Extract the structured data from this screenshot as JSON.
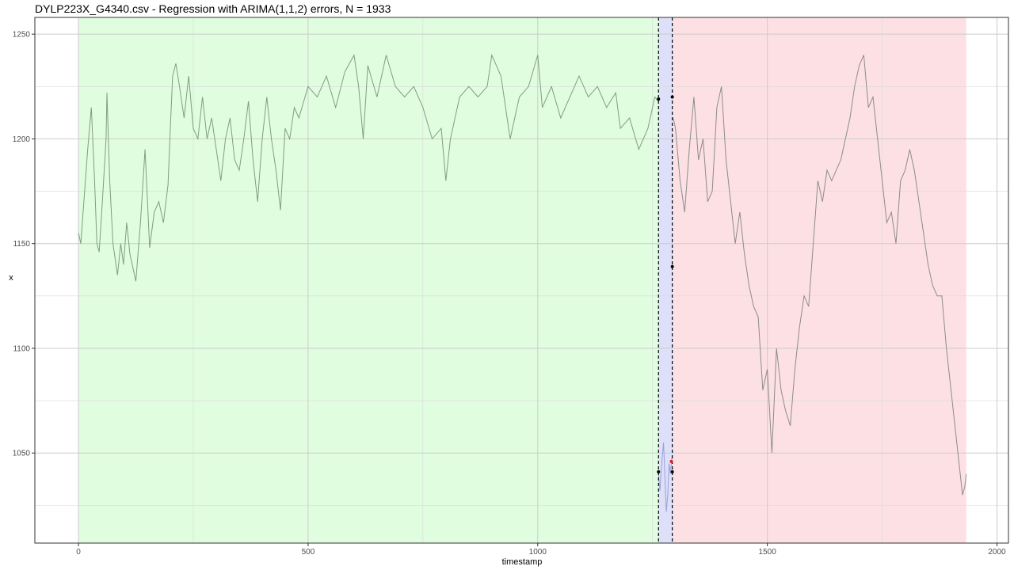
{
  "chart_data": {
    "type": "line",
    "title": "DYLP223X_G4340.csv - Regression with ARIMA(1,1,2) errors, N = 1933",
    "xlabel": "timestamp",
    "ylabel": "x",
    "xlim": [
      -95,
      2025
    ],
    "ylim": [
      1007,
      1258
    ],
    "x_ticks": [
      0,
      500,
      1000,
      1500,
      2000
    ],
    "y_ticks": [
      1050,
      1100,
      1150,
      1200,
      1250
    ],
    "grid": true,
    "regions": [
      {
        "name": "train",
        "x_start": 0,
        "x_end": 1263,
        "color": "#e0fde0"
      },
      {
        "name": "gap",
        "x_start": 1263,
        "x_end": 1295,
        "color": "#dde0f8"
      },
      {
        "name": "test",
        "x_start": 1295,
        "x_end": 1933,
        "color": "#fde0e4"
      }
    ],
    "vlines": [
      1263,
      1293
    ],
    "series": [
      {
        "line_color": "#7f9e7f",
        "points": [
          [
            0,
            1155
          ],
          [
            5,
            1150
          ],
          [
            10,
            1165
          ],
          [
            20,
            1195
          ],
          [
            28,
            1215
          ],
          [
            35,
            1180
          ],
          [
            40,
            1150
          ],
          [
            45,
            1146
          ],
          [
            52,
            1170
          ],
          [
            60,
            1200
          ],
          [
            62,
            1222
          ],
          [
            68,
            1180
          ],
          [
            75,
            1150
          ],
          [
            85,
            1135
          ],
          [
            92,
            1150
          ],
          [
            98,
            1140
          ],
          [
            105,
            1160
          ],
          [
            112,
            1145
          ],
          [
            125,
            1132
          ],
          [
            135,
            1160
          ],
          [
            145,
            1195
          ],
          [
            155,
            1148
          ],
          [
            165,
            1165
          ],
          [
            175,
            1170
          ],
          [
            185,
            1160
          ],
          [
            195,
            1178
          ],
          [
            200,
            1205
          ],
          [
            205,
            1230
          ],
          [
            212,
            1236
          ],
          [
            220,
            1225
          ],
          [
            230,
            1210
          ],
          [
            240,
            1230
          ],
          [
            250,
            1205
          ],
          [
            260,
            1200
          ],
          [
            270,
            1220
          ],
          [
            280,
            1200
          ],
          [
            290,
            1210
          ],
          [
            300,
            1195
          ],
          [
            310,
            1180
          ],
          [
            320,
            1200
          ],
          [
            330,
            1210
          ],
          [
            340,
            1190
          ],
          [
            350,
            1185
          ],
          [
            360,
            1200
          ],
          [
            370,
            1218
          ],
          [
            380,
            1190
          ],
          [
            390,
            1170
          ],
          [
            400,
            1200
          ],
          [
            410,
            1220
          ],
          [
            420,
            1200
          ],
          [
            430,
            1185
          ],
          [
            440,
            1166
          ],
          [
            450,
            1205
          ],
          [
            460,
            1200
          ],
          [
            470,
            1215
          ],
          [
            480,
            1210
          ],
          [
            500,
            1225
          ],
          [
            520,
            1220
          ],
          [
            540,
            1230
          ],
          [
            560,
            1215
          ],
          [
            580,
            1232
          ],
          [
            600,
            1240
          ],
          [
            610,
            1225
          ],
          [
            620,
            1200
          ],
          [
            630,
            1235
          ],
          [
            650,
            1220
          ],
          [
            670,
            1240
          ],
          [
            690,
            1225
          ],
          [
            710,
            1220
          ],
          [
            730,
            1225
          ],
          [
            750,
            1215
          ],
          [
            770,
            1200
          ],
          [
            790,
            1205
          ],
          [
            800,
            1180
          ],
          [
            810,
            1200
          ],
          [
            830,
            1220
          ],
          [
            850,
            1225
          ],
          [
            870,
            1220
          ],
          [
            890,
            1225
          ],
          [
            900,
            1240
          ],
          [
            920,
            1230
          ],
          [
            940,
            1200
          ],
          [
            960,
            1220
          ],
          [
            980,
            1225
          ],
          [
            1000,
            1240
          ],
          [
            1010,
            1215
          ],
          [
            1030,
            1225
          ],
          [
            1050,
            1210
          ],
          [
            1070,
            1220
          ],
          [
            1090,
            1230
          ],
          [
            1110,
            1220
          ],
          [
            1130,
            1225
          ],
          [
            1150,
            1215
          ],
          [
            1170,
            1222
          ],
          [
            1180,
            1205
          ],
          [
            1200,
            1210
          ],
          [
            1220,
            1195
          ],
          [
            1240,
            1205
          ],
          [
            1255,
            1220
          ],
          [
            1262,
            1218
          ]
        ]
      },
      {
        "line_color": "#9aa0d8",
        "points": [
          [
            1263,
            1040
          ],
          [
            1266,
            1032
          ],
          [
            1270,
            1045
          ],
          [
            1274,
            1055
          ],
          [
            1277,
            1038
          ],
          [
            1280,
            1022
          ],
          [
            1283,
            1030
          ],
          [
            1286,
            1045
          ],
          [
            1289,
            1040
          ],
          [
            1292,
            1048
          ]
        ]
      },
      {
        "line_color": "#8c8c8c",
        "points": [
          [
            1295,
            1210
          ],
          [
            1300,
            1205
          ],
          [
            1310,
            1180
          ],
          [
            1320,
            1165
          ],
          [
            1330,
            1195
          ],
          [
            1340,
            1220
          ],
          [
            1350,
            1190
          ],
          [
            1360,
            1200
          ],
          [
            1370,
            1170
          ],
          [
            1380,
            1175
          ],
          [
            1390,
            1215
          ],
          [
            1400,
            1225
          ],
          [
            1410,
            1190
          ],
          [
            1420,
            1170
          ],
          [
            1430,
            1150
          ],
          [
            1440,
            1165
          ],
          [
            1450,
            1145
          ],
          [
            1460,
            1130
          ],
          [
            1470,
            1120
          ],
          [
            1480,
            1115
          ],
          [
            1490,
            1080
          ],
          [
            1500,
            1090
          ],
          [
            1510,
            1050
          ],
          [
            1520,
            1100
          ],
          [
            1530,
            1080
          ],
          [
            1540,
            1070
          ],
          [
            1550,
            1063
          ],
          [
            1560,
            1090
          ],
          [
            1570,
            1110
          ],
          [
            1580,
            1125
          ],
          [
            1590,
            1120
          ],
          [
            1600,
            1150
          ],
          [
            1610,
            1180
          ],
          [
            1620,
            1170
          ],
          [
            1630,
            1185
          ],
          [
            1640,
            1180
          ],
          [
            1650,
            1185
          ],
          [
            1660,
            1190
          ],
          [
            1670,
            1200
          ],
          [
            1680,
            1210
          ],
          [
            1690,
            1225
          ],
          [
            1700,
            1235
          ],
          [
            1710,
            1240
          ],
          [
            1720,
            1215
          ],
          [
            1730,
            1220
          ],
          [
            1740,
            1200
          ],
          [
            1750,
            1180
          ],
          [
            1760,
            1160
          ],
          [
            1770,
            1165
          ],
          [
            1780,
            1150
          ],
          [
            1790,
            1180
          ],
          [
            1800,
            1185
          ],
          [
            1810,
            1195
          ],
          [
            1820,
            1185
          ],
          [
            1830,
            1170
          ],
          [
            1840,
            1155
          ],
          [
            1850,
            1140
          ],
          [
            1860,
            1130
          ],
          [
            1870,
            1125
          ],
          [
            1880,
            1125
          ],
          [
            1890,
            1100
          ],
          [
            1900,
            1080
          ],
          [
            1910,
            1060
          ],
          [
            1920,
            1040
          ],
          [
            1925,
            1030
          ],
          [
            1930,
            1034
          ],
          [
            1933,
            1040
          ]
        ]
      }
    ],
    "markers": [
      {
        "x": 1263,
        "y": 1219,
        "color": "#000000"
      },
      {
        "x": 1263,
        "y": 1041,
        "color": "#000000"
      },
      {
        "x": 1293,
        "y": 1220,
        "color": "#000000"
      },
      {
        "x": 1293,
        "y": 1139,
        "color": "#000000"
      },
      {
        "x": 1293,
        "y": 1041,
        "color": "#000000"
      },
      {
        "x": 1291,
        "y": 1046,
        "color": "#e41a1c"
      }
    ]
  }
}
